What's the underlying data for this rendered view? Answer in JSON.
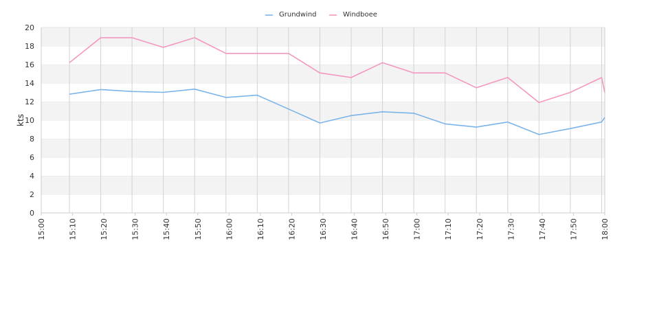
{
  "chart_data": {
    "type": "line",
    "ylabel": "kts",
    "ylim": [
      0,
      20
    ],
    "yticks": [
      0,
      2,
      4,
      6,
      8,
      10,
      12,
      14,
      16,
      18,
      20
    ],
    "xlim": [
      "15:00",
      "18:00"
    ],
    "xticks": [
      "15:00",
      "15:10",
      "15:20",
      "15:30",
      "15:40",
      "15:50",
      "16:00",
      "16:10",
      "16:20",
      "16:30",
      "16:40",
      "16:50",
      "17:00",
      "17:10",
      "17:20",
      "17:30",
      "17:40",
      "17:50",
      "18:00"
    ],
    "legend_position": "top-center",
    "grid": "alternating horizontal bands, vertical lines at sample times",
    "series": [
      {
        "name": "Grundwind",
        "color": "#7ab4ea",
        "points": [
          [
            "15:09",
            12.8
          ],
          [
            "15:19",
            13.3
          ],
          [
            "15:29",
            13.1
          ],
          [
            "15:39",
            13.0
          ],
          [
            "15:49",
            13.35
          ],
          [
            "15:59",
            12.45
          ],
          [
            "16:09",
            12.7
          ],
          [
            "16:19",
            11.2
          ],
          [
            "16:29",
            9.7
          ],
          [
            "16:39",
            10.5
          ],
          [
            "16:49",
            10.9
          ],
          [
            "16:59",
            10.75
          ],
          [
            "17:09",
            9.6
          ],
          [
            "17:19",
            9.25
          ],
          [
            "17:29",
            9.8
          ],
          [
            "17:39",
            8.45
          ],
          [
            "17:49",
            9.1
          ],
          [
            "17:59",
            9.8
          ],
          [
            "18:00",
            10.3
          ]
        ]
      },
      {
        "name": "Windboee",
        "color": "#f497c0",
        "points": [
          [
            "15:09",
            16.2
          ],
          [
            "15:19",
            18.9
          ],
          [
            "15:29",
            18.9
          ],
          [
            "15:39",
            17.85
          ],
          [
            "15:49",
            18.9
          ],
          [
            "15:59",
            17.2
          ],
          [
            "16:09",
            17.2
          ],
          [
            "16:19",
            17.2
          ],
          [
            "16:29",
            15.1
          ],
          [
            "16:39",
            14.6
          ],
          [
            "16:49",
            16.2
          ],
          [
            "16:59",
            15.1
          ],
          [
            "17:09",
            15.1
          ],
          [
            "17:19",
            13.5
          ],
          [
            "17:29",
            14.6
          ],
          [
            "17:39",
            11.9
          ],
          [
            "17:49",
            13.0
          ],
          [
            "17:59",
            14.6
          ],
          [
            "18:00",
            13.0
          ]
        ]
      }
    ]
  }
}
